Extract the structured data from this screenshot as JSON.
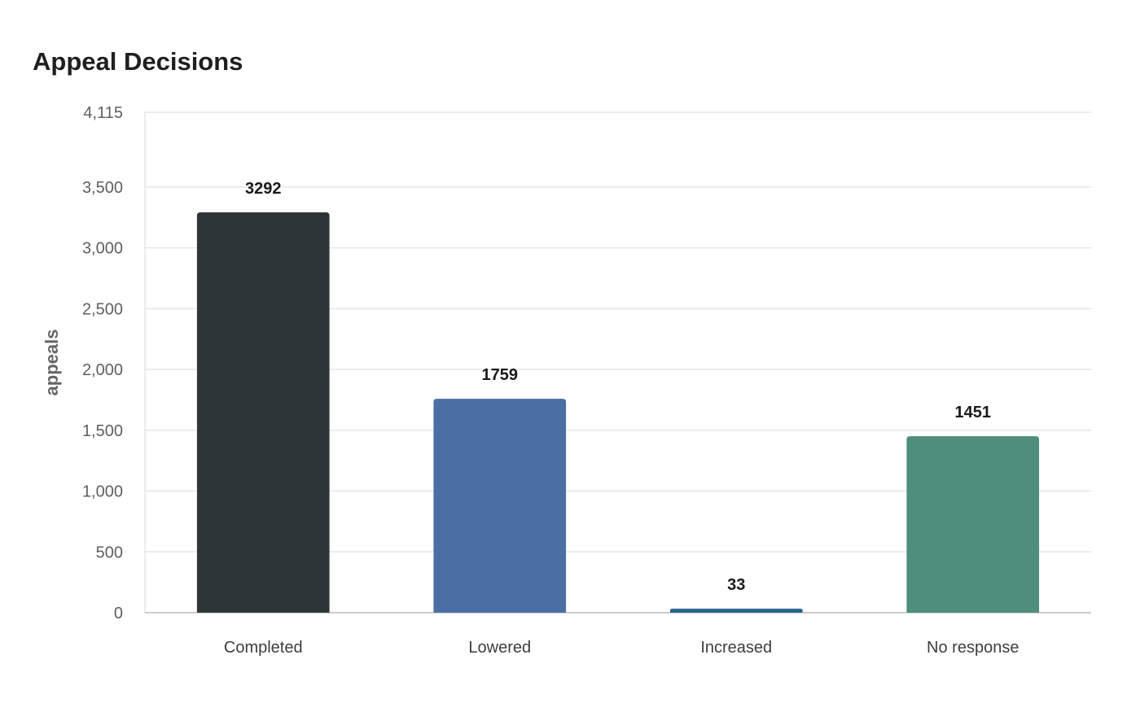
{
  "chart_data": {
    "type": "bar",
    "title": "Appeal Decisions",
    "xlabel": "",
    "ylabel": "appeals",
    "categories": [
      "Completed",
      "Lowered",
      "Increased",
      "No response"
    ],
    "values": [
      3292,
      1759,
      33,
      1451
    ],
    "value_labels": [
      "3292",
      "1759",
      "33",
      "1451"
    ],
    "colors": [
      "#2e3538",
      "#4a6fa5",
      "#27648a",
      "#4e8e7b"
    ],
    "ylim": [
      0,
      4115
    ],
    "yticks": [
      0,
      500,
      1000,
      1500,
      2000,
      2500,
      3000,
      3500,
      4115
    ],
    "ytick_labels": [
      "0",
      "500",
      "1,000",
      "1,500",
      "2,000",
      "2,500",
      "3,000",
      "3,500",
      "4,115"
    ],
    "grid": true,
    "legend": "none"
  }
}
